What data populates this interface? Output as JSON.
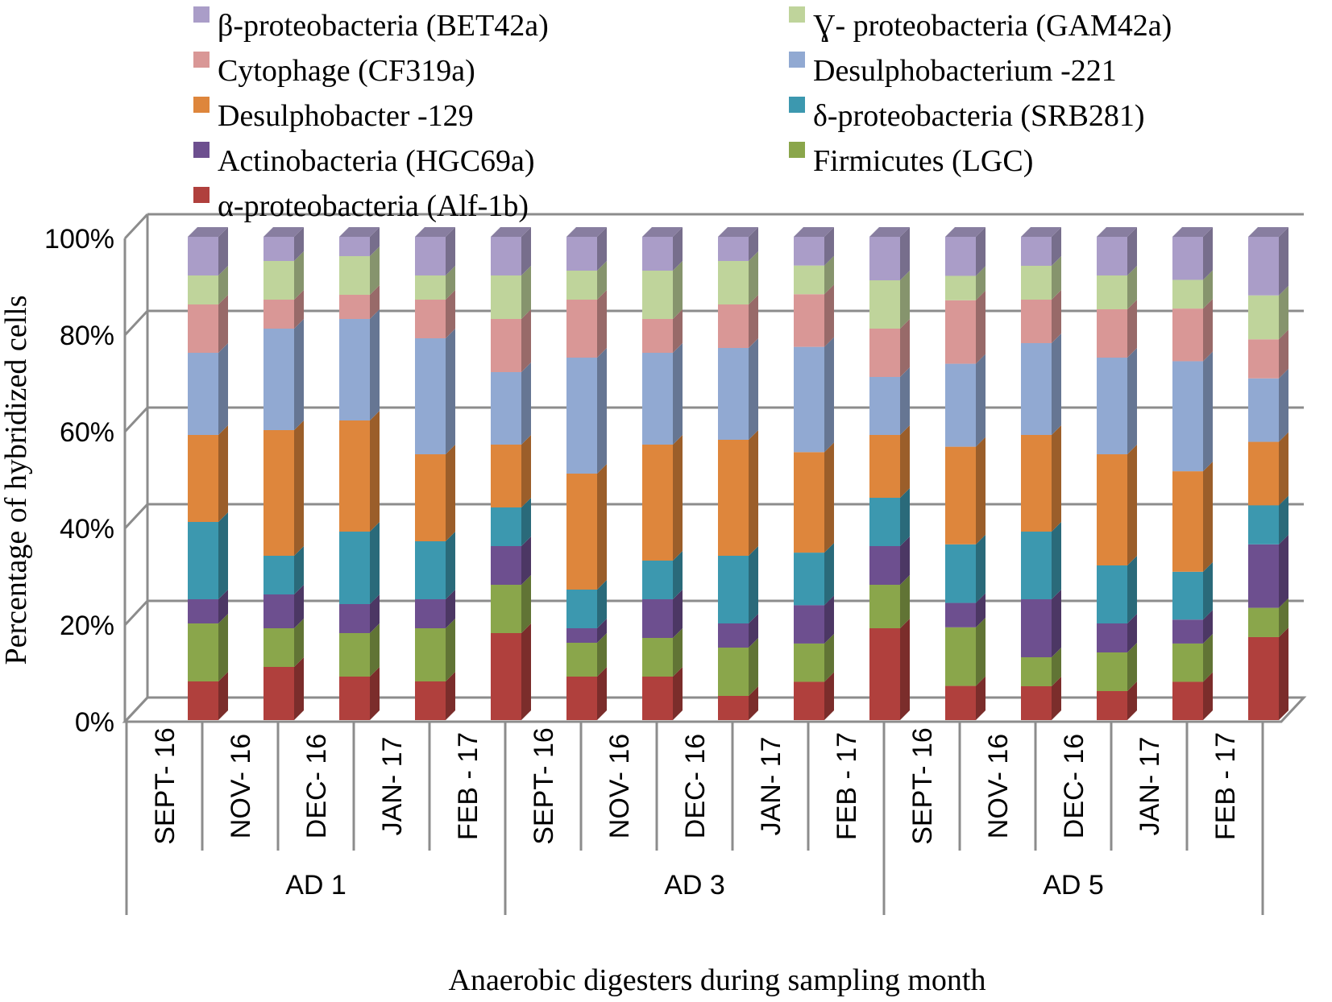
{
  "chart_data": {
    "type": "bar",
    "stacked": true,
    "percent_stacked": true,
    "three_d": true,
    "title": "",
    "xlabel": "Anaerobic digesters during sampling month",
    "ylabel": "Percentage of hybridized cells",
    "ylim": [
      0,
      100
    ],
    "yticks": [
      "0%",
      "20%",
      "40%",
      "60%",
      "80%",
      "100%"
    ],
    "grid": true,
    "legend_position": "top",
    "groups": [
      {
        "name": "AD 1",
        "months": [
          "SEPT- 16",
          "NOV- 16",
          "DEC- 16",
          "JAN- 17",
          "FEB - 17"
        ]
      },
      {
        "name": "AD 3",
        "months": [
          "SEPT- 16",
          "NOV- 16",
          "DEC- 16",
          "JAN- 17",
          "FEB - 17"
        ]
      },
      {
        "name": "AD 5",
        "months": [
          "SEPT- 16",
          "NOV- 16",
          "DEC- 16",
          "JAN- 17",
          "FEB - 17"
        ]
      }
    ],
    "series": [
      {
        "name": "α-proteobacteria  (Alf-1b)",
        "color": "#B0403D",
        "values": [
          8,
          11,
          9,
          8,
          18,
          9,
          9,
          5,
          8,
          19,
          7,
          7,
          6,
          8,
          17
        ]
      },
      {
        "name": "Firmicutes (LGC)",
        "color": "#8AA64B",
        "values": [
          12,
          8,
          9,
          11,
          10,
          7,
          8,
          10,
          8,
          9,
          12,
          6,
          8,
          8,
          6
        ]
      },
      {
        "name": "Actinobacteria (HGC69a)",
        "color": "#6D4F8F",
        "values": [
          5,
          7,
          6,
          6,
          8,
          3,
          8,
          5,
          8,
          8,
          5,
          12,
          6,
          5,
          13
        ]
      },
      {
        "name": "δ-proteobacteria (SRB281)",
        "color": "#3C98AF",
        "values": [
          16,
          8,
          15,
          12,
          8,
          8,
          8,
          14,
          11,
          10,
          12,
          14,
          12,
          10,
          8
        ]
      },
      {
        "name": "Desulphobacter -129",
        "color": "#DE863C",
        "values": [
          18,
          26,
          23,
          18,
          13,
          24,
          24,
          24,
          21,
          13,
          20,
          20,
          23,
          21,
          13
        ]
      },
      {
        "name": "Desulphobacterium -221",
        "color": "#91A9D2",
        "values": [
          17,
          21,
          21,
          24,
          15,
          24,
          19,
          19,
          22,
          12,
          17,
          19,
          20,
          23,
          13
        ]
      },
      {
        "name": "Cytophage (CF319a)",
        "color": "#D99796",
        "values": [
          10,
          6,
          5,
          8,
          11,
          12,
          7,
          9,
          11,
          10,
          13,
          9,
          10,
          11,
          8
        ]
      },
      {
        "name": "Ɣ- proteobacteria (GAM42a)",
        "color": "#BFD49B",
        "values": [
          6,
          8,
          8,
          5,
          9,
          6,
          10,
          9,
          6,
          10,
          5,
          7,
          7,
          6,
          9
        ]
      },
      {
        "name": "β-proteobacteria (BET42a)",
        "color": "#AA9DC8",
        "values": [
          8,
          5,
          4,
          8,
          8,
          7,
          7,
          5,
          6,
          9,
          8,
          6,
          8,
          9,
          12
        ]
      }
    ],
    "legend_order": [
      "β-proteobacteria (BET42a)",
      "Ɣ- proteobacteria (GAM42a)",
      "Cytophage (CF319a)",
      "Desulphobacterium -221",
      "Desulphobacter -129",
      "δ-proteobacteria (SRB281)",
      "Actinobacteria (HGC69a)",
      "Firmicutes (LGC)",
      "α-proteobacteria  (Alf-1b)"
    ]
  }
}
